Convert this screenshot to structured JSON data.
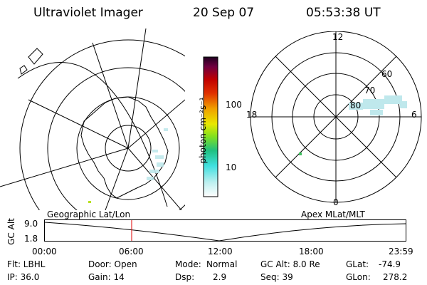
{
  "header": {
    "title": "Ultraviolet Imager",
    "date": "20 Sep 07",
    "time": "05:53:38 UT"
  },
  "panels": {
    "geo_label": "Geographic Lat/Lon",
    "apex_label": "Apex MLat/MLT"
  },
  "colorbar": {
    "unit": "photon cm⁻²s⁻¹",
    "ticks": [
      "100",
      "10"
    ],
    "colors": [
      "#ffffff",
      "#bff0f0",
      "#40e0e0",
      "#20c080",
      "#80e020",
      "#e8e800",
      "#f0a000",
      "#e03000",
      "#c00000",
      "#700040",
      "#200020"
    ]
  },
  "polar": {
    "mlt_labels": {
      "top": "12",
      "left": "18",
      "right": "6",
      "bottom": "0"
    },
    "lat_labels": [
      "60",
      "70",
      "80"
    ]
  },
  "altitude_plot": {
    "ylabel": "GC Alt",
    "yticks": [
      "9.0",
      "1.8"
    ],
    "xticks": [
      "00:00",
      "06:00",
      "12:00",
      "18:00",
      "23:59"
    ],
    "current_time_marker": "05:53",
    "marker_color": "#e00000"
  },
  "status": {
    "flt": "Flt: LBHL",
    "ip": "IP: 36.0",
    "door": "Door: Open",
    "gain": "Gain: 14",
    "mode_label": "Mode:",
    "mode_value": "Normal",
    "dsp_label": "Dsp:",
    "dsp_value": "2.9",
    "gc_alt": "GC Alt: 8.0 Re",
    "seq": "Seq: 39",
    "glat_label": "GLat:",
    "glat_value": "-74.9",
    "glon_label": "GLon:",
    "glon_value": "278.2"
  }
}
